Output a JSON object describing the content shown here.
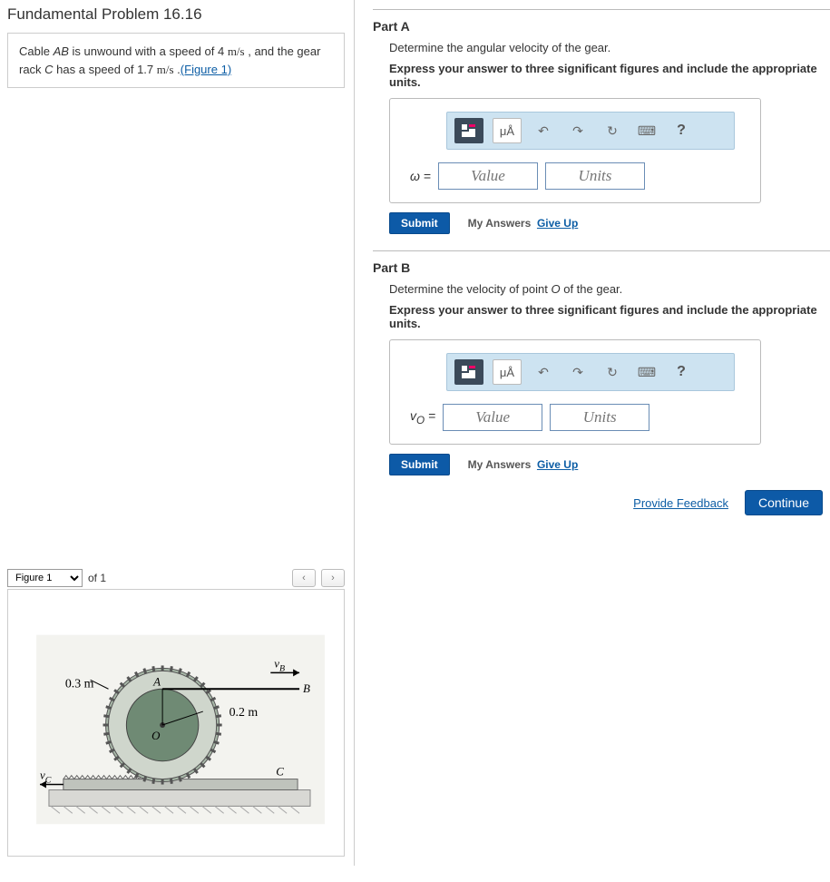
{
  "left": {
    "title": "Fundamental Problem 16.16",
    "problem_html_parts": {
      "p1a": "Cable ",
      "p1_ab": "AB",
      "p1b": " is unwound with a speed of 4 ",
      "unit1": "m/s",
      "p1c": " , and the gear rack ",
      "p1_c": "C",
      "p1d": " has a speed of 1.7 ",
      "unit2": "m/s",
      "p1e": " .",
      "fig_link": "(Figure 1)"
    },
    "figure_bar": {
      "select": "Figure 1",
      "of": "of 1",
      "prev": "‹",
      "next": "›"
    },
    "figure": {
      "r_outer_label": "0.3 m",
      "r_inner_label": "0.2 m",
      "pt_A": "A",
      "pt_B": "B",
      "pt_C": "C",
      "pt_O": "O",
      "vB": "v",
      "vB_sub": "B",
      "vC": "v",
      "vC_sub": "C",
      "colors": {
        "bg": "#f3f3ef",
        "gear_outer": "#a8b8a8",
        "gear_outer_stroke": "#555",
        "gear_inner": "#6f8a74",
        "wheel_body": "#cfd6cc",
        "rack": "#bfc3bc",
        "ground": "#d8d8d4",
        "text": "#000"
      }
    }
  },
  "right": {
    "partA": {
      "title": "Part A",
      "question": "Determine the angular velocity of the gear.",
      "instruct": "Express your answer to three significant figures and include the appropriate units.",
      "var": "ω =",
      "value_ph": "Value",
      "units_ph": "Units",
      "submit": "Submit",
      "my_answers": "My Answers",
      "give_up": "Give Up"
    },
    "partB": {
      "title": "Part B",
      "question_pre": "Determine the velocity of point ",
      "question_var": "O",
      "question_post": " of the gear.",
      "instruct": "Express your answer to three significant figures and include the appropriate units.",
      "var_html": "v",
      "var_sub": "O",
      "var_post": " =",
      "value_ph": "Value",
      "units_ph": "Units",
      "submit": "Submit",
      "my_answers": "My Answers",
      "give_up": "Give Up"
    },
    "toolbar": {
      "mu": "μÅ",
      "undo": "↶",
      "redo": "↷",
      "reset": "↻",
      "keyboard": "⌨",
      "help": "?"
    },
    "feedback": "Provide Feedback",
    "continue": "Continue"
  }
}
